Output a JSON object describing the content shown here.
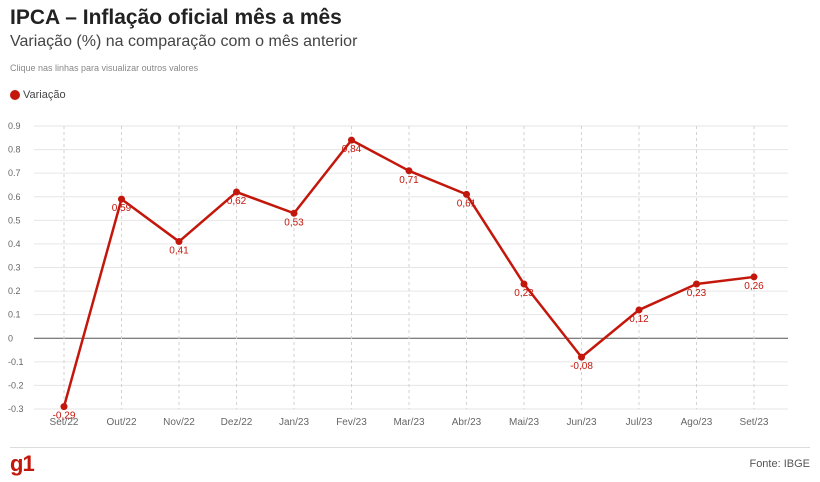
{
  "header": {
    "title": "IPCA – Inflação oficial mês a mês",
    "subtitle": "Variação (%) na comparação com o mês anterior",
    "hint": "Clique nas linhas para visualizar outros valores"
  },
  "footer": {
    "logo": "g1",
    "source": "Fonte: IBGE"
  },
  "colors": {
    "series": "#c4170c",
    "grid": "#e6e6e6",
    "zero_line": "#555555"
  },
  "chart_data": {
    "type": "line",
    "title": "IPCA – Inflação oficial mês a mês",
    "subtitle": "Variação (%) na comparação com o mês anterior",
    "categories": [
      "Set/22",
      "Out/22",
      "Nov/22",
      "Dez/22",
      "Jan/23",
      "Fev/23",
      "Mar/23",
      "Abr/23",
      "Mai/23",
      "Jun/23",
      "Jul/23",
      "Ago/23",
      "Set/23"
    ],
    "series": [
      {
        "name": "Variação",
        "values": [
          -0.29,
          0.59,
          0.41,
          0.62,
          0.53,
          0.84,
          0.71,
          0.61,
          0.23,
          -0.08,
          0.12,
          0.23,
          0.26
        ],
        "labels": [
          "-0,29",
          "0,59",
          "0,41",
          "0,62",
          "0,53",
          "0,84",
          "0,71",
          "0,61",
          "0,23",
          "-0,08",
          "0,12",
          "0,23",
          "0,26"
        ]
      }
    ],
    "ylim": [
      -0.3,
      0.9
    ],
    "yticks": [
      -0.3,
      -0.2,
      -0.1,
      0,
      0.1,
      0.2,
      0.3,
      0.4,
      0.5,
      0.6,
      0.7,
      0.8,
      0.9
    ],
    "ytick_labels": [
      "-0.3",
      "-0.2",
      "-0.1",
      "0",
      "0.1",
      "0.2",
      "0.3",
      "0.4",
      "0.5",
      "0.6",
      "0.7",
      "0.8",
      "0.9"
    ],
    "grid": true,
    "legend_position": "top-left"
  }
}
